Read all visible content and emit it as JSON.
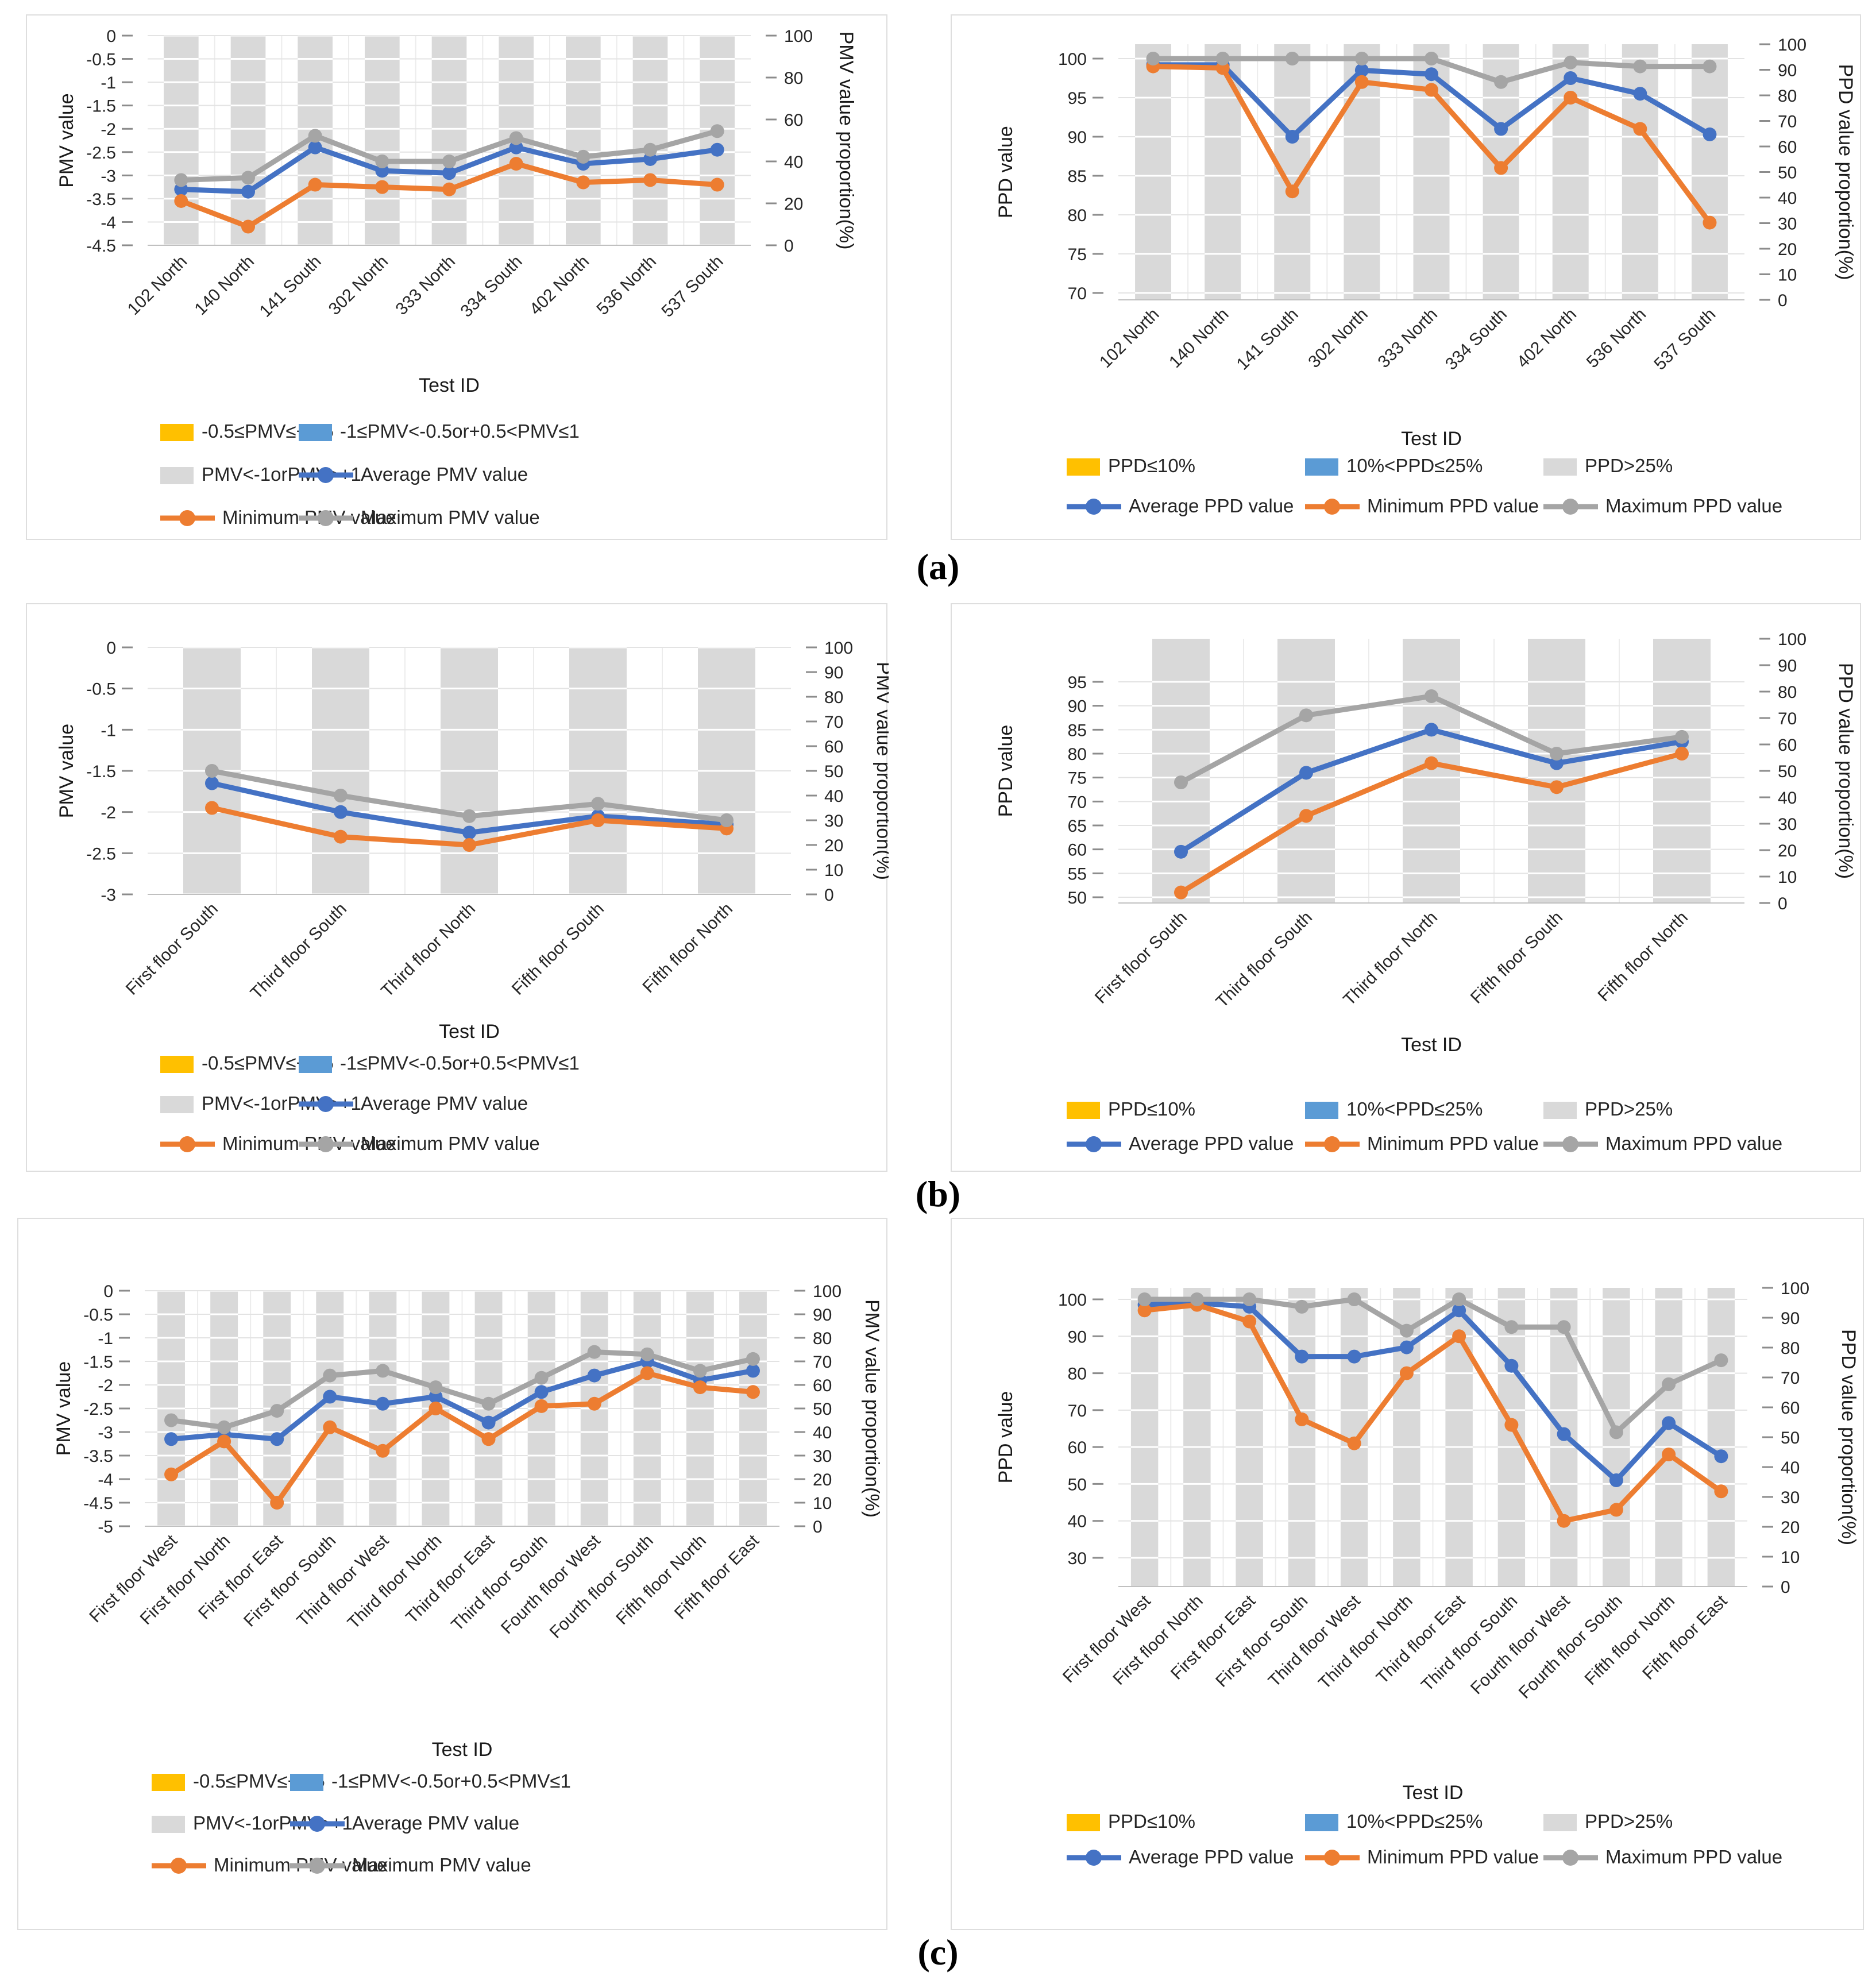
{
  "figure": {
    "row_labels": [
      "(a)",
      "(b)",
      "(c)"
    ]
  },
  "palette": {
    "band_yellow": "#FFC000",
    "band_blue": "#5B9BD5",
    "band_gray": "#D9D9D9",
    "avg_line": "#4472C4",
    "min_line": "#ED7D31",
    "max_line": "#A5A5A5",
    "tick_text": "#262626",
    "title_text": "#1a1a1a",
    "gridline": "#e3e3e3",
    "vgridline": "#ececec",
    "axis_line": "#c0c0c0",
    "tick_mark": "#8c8c8c"
  },
  "chart_data": [
    {
      "id": "pmv-a",
      "type": "line",
      "left_axis": {
        "title": "PMV value",
        "min": -4.5,
        "max": 0,
        "step": 0.5
      },
      "right_axis": {
        "title": "PMV value proportion(%)",
        "min": 0,
        "max": 100,
        "step": 20
      },
      "xlabel": "Test ID",
      "categories": [
        "102 North",
        "140 North",
        "141 South",
        "302 North",
        "333 North",
        "334 South",
        "402 North",
        "536 North",
        "537 South"
      ],
      "bar_series": {
        "name": "PMV<-1orPMV>+1 proportion",
        "values": [
          100,
          100,
          100,
          100,
          100,
          100,
          100,
          100,
          100
        ]
      },
      "series": [
        {
          "name": "Average PMV value",
          "color": "avg_line",
          "values": [
            -3.3,
            -3.35,
            -2.4,
            -2.9,
            -2.95,
            -2.4,
            -2.75,
            -2.65,
            -2.45
          ]
        },
        {
          "name": "Minimum PMV value",
          "color": "min_line",
          "values": [
            -3.55,
            -4.1,
            -3.2,
            -3.25,
            -3.3,
            -2.75,
            -3.15,
            -3.1,
            -3.2
          ]
        },
        {
          "name": "Maximum PMV value",
          "color": "max_line",
          "values": [
            -3.1,
            -3.05,
            -2.15,
            -2.7,
            -2.7,
            -2.2,
            -2.6,
            -2.45,
            -2.05
          ]
        }
      ],
      "legend": [
        {
          "type": "swatch",
          "color": "band_yellow",
          "label": "-0.5≤PMV≤+0.5"
        },
        {
          "type": "swatch",
          "color": "band_blue",
          "label": "-1≤PMV<-0.5or+0.5<PMV≤1"
        },
        {
          "type": "swatch",
          "color": "band_gray",
          "label": "PMV<-1orPMV>+1"
        },
        {
          "type": "line",
          "color": "avg_line",
          "label": "Average PMV value"
        },
        {
          "type": "line",
          "color": "min_line",
          "label": "Minimum PMV value"
        },
        {
          "type": "line",
          "color": "max_line",
          "label": "Maximum PMV value"
        }
      ]
    },
    {
      "id": "ppd-a",
      "type": "line",
      "left_axis": {
        "title": "PPD value",
        "min": 70,
        "max": 100,
        "step": 5
      },
      "right_axis": {
        "title": "PPD value proportion(%)",
        "min": 0,
        "max": 100,
        "step": 10
      },
      "xlabel": "Test ID",
      "categories": [
        "102 North",
        "140 North",
        "141 South",
        "302 North",
        "333 North",
        "334 South",
        "402 North",
        "536 North",
        "537 South"
      ],
      "bar_series": {
        "name": "PPD>25% proportion",
        "values": [
          100,
          100,
          100,
          100,
          100,
          100,
          100,
          100,
          100
        ]
      },
      "series": [
        {
          "name": "Average PPD value",
          "color": "avg_line",
          "values": [
            99.2,
            99.2,
            90,
            98.5,
            98,
            91,
            97.5,
            95.5,
            90.3
          ]
        },
        {
          "name": "Minimum PPD value",
          "color": "min_line",
          "values": [
            99,
            98.8,
            83,
            97,
            96,
            86,
            95,
            91,
            79
          ]
        },
        {
          "name": "Maximum PPD value",
          "color": "max_line",
          "values": [
            100,
            100,
            100,
            100,
            100,
            97,
            99.5,
            99,
            99
          ]
        }
      ],
      "legend": [
        {
          "type": "swatch",
          "color": "band_yellow",
          "label": "PPD≤10%"
        },
        {
          "type": "swatch",
          "color": "band_blue",
          "label": "10%<PPD≤25%"
        },
        {
          "type": "swatch",
          "color": "band_gray",
          "label": "PPD>25%"
        },
        {
          "type": "line",
          "color": "avg_line",
          "label": "Average PPD value"
        },
        {
          "type": "line",
          "color": "min_line",
          "label": "Minimum PPD value"
        },
        {
          "type": "line",
          "color": "max_line",
          "label": "Maximum PPD value"
        }
      ]
    },
    {
      "id": "pmv-b",
      "type": "line",
      "left_axis": {
        "title": "PMV value",
        "min": -3,
        "max": 0,
        "step": 0.5
      },
      "right_axis": {
        "title": "PMV value proportion(%)",
        "min": 0,
        "max": 100,
        "step": 10
      },
      "xlabel": "Test ID",
      "categories": [
        "First floor South",
        "Third floor South",
        "Third floor North",
        "Fifth floor South",
        "Fifth floor North"
      ],
      "bar_series": {
        "name": "PMV<-1orPMV>+1 proportion",
        "values": [
          100,
          100,
          100,
          100,
          100
        ]
      },
      "series": [
        {
          "name": "Average PMV value",
          "color": "avg_line",
          "values": [
            -1.65,
            -2.0,
            -2.25,
            -2.05,
            -2.15
          ]
        },
        {
          "name": "Minimum PMV value",
          "color": "min_line",
          "values": [
            -1.95,
            -2.3,
            -2.4,
            -2.1,
            -2.2
          ]
        },
        {
          "name": "Maximum PMV value",
          "color": "max_line",
          "values": [
            -1.5,
            -1.8,
            -2.05,
            -1.9,
            -2.1
          ]
        }
      ],
      "legend": [
        {
          "type": "swatch",
          "color": "band_yellow",
          "label": "-0.5≤PMV≤+0.5"
        },
        {
          "type": "swatch",
          "color": "band_blue",
          "label": "-1≤PMV<-0.5or+0.5<PMV≤1"
        },
        {
          "type": "swatch",
          "color": "band_gray",
          "label": "PMV<-1orPMV>+1"
        },
        {
          "type": "line",
          "color": "avg_line",
          "label": "Average PMV value"
        },
        {
          "type": "line",
          "color": "min_line",
          "label": "Minimum PMV value"
        },
        {
          "type": "line",
          "color": "max_line",
          "label": "Maximum PMV value"
        }
      ]
    },
    {
      "id": "ppd-b",
      "type": "line",
      "left_axis": {
        "title": "PPD value",
        "min": 50,
        "max": 95,
        "step": 5
      },
      "right_axis": {
        "title": "PPD value proportion(%)",
        "min": 0,
        "max": 100,
        "step": 10
      },
      "xlabel": "Test ID",
      "categories": [
        "First floor South",
        "Third floor South",
        "Third floor North",
        "Fifth floor South",
        "Fifth floor North"
      ],
      "bar_series": {
        "name": "PPD>25% proportion",
        "values": [
          100,
          100,
          100,
          100,
          100
        ]
      },
      "series": [
        {
          "name": "Average PPD value",
          "color": "avg_line",
          "values": [
            59.5,
            76,
            85,
            78,
            82.5
          ]
        },
        {
          "name": "Minimum PPD value",
          "color": "min_line",
          "values": [
            51,
            67,
            78,
            73,
            80
          ]
        },
        {
          "name": "Maximum PPD value",
          "color": "max_line",
          "values": [
            74,
            88,
            92,
            80,
            83.5
          ]
        }
      ],
      "legend": [
        {
          "type": "swatch",
          "color": "band_yellow",
          "label": "PPD≤10%"
        },
        {
          "type": "swatch",
          "color": "band_blue",
          "label": "10%<PPD≤25%"
        },
        {
          "type": "swatch",
          "color": "band_gray",
          "label": "PPD>25%"
        },
        {
          "type": "line",
          "color": "avg_line",
          "label": "Average PPD value"
        },
        {
          "type": "line",
          "color": "min_line",
          "label": "Minimum PPD value"
        },
        {
          "type": "line",
          "color": "max_line",
          "label": "Maximum PPD value"
        }
      ]
    },
    {
      "id": "pmv-c",
      "type": "line",
      "left_axis": {
        "title": "PMV value",
        "min": -5,
        "max": 0,
        "step": 0.5
      },
      "right_axis": {
        "title": "PMV value proportion(%)",
        "min": 0,
        "max": 100,
        "step": 10
      },
      "xlabel": "Test ID",
      "categories": [
        "First floor West",
        "First floor North",
        "First floor East",
        "First floor South",
        "Third floor West",
        "Third floor North",
        "Third floor East",
        "Third floor South",
        "Fourth floor West",
        "Fourth floor South",
        "Fifth floor North",
        "Fifth floor East"
      ],
      "bar_series": {
        "name": "PMV<-1orPMV>+1 proportion",
        "values": [
          100,
          100,
          100,
          100,
          100,
          100,
          100,
          100,
          100,
          100,
          100,
          100
        ]
      },
      "series": [
        {
          "name": "Average PMV value",
          "color": "avg_line",
          "values": [
            -3.15,
            -3.05,
            -3.15,
            -2.25,
            -2.4,
            -2.25,
            -2.8,
            -2.15,
            -1.8,
            -1.5,
            -1.9,
            -1.7
          ]
        },
        {
          "name": "Minimum PMV value",
          "color": "min_line",
          "values": [
            -3.9,
            -3.2,
            -4.5,
            -2.9,
            -3.4,
            -2.5,
            -3.15,
            -2.45,
            -2.4,
            -1.75,
            -2.05,
            -2.15
          ]
        },
        {
          "name": "Maximum PMV value",
          "color": "max_line",
          "values": [
            -2.75,
            -2.9,
            -2.55,
            -1.8,
            -1.7,
            -2.05,
            -2.4,
            -1.85,
            -1.3,
            -1.35,
            -1.7,
            -1.45
          ]
        }
      ],
      "legend": [
        {
          "type": "swatch",
          "color": "band_yellow",
          "label": "-0.5≤PMV≤+0.5"
        },
        {
          "type": "swatch",
          "color": "band_blue",
          "label": "-1≤PMV<-0.5or+0.5<PMV≤1"
        },
        {
          "type": "swatch",
          "color": "band_gray",
          "label": "PMV<-1orPMV>+1"
        },
        {
          "type": "line",
          "color": "avg_line",
          "label": "Average PMV value"
        },
        {
          "type": "line",
          "color": "min_line",
          "label": "Minimum PMV value"
        },
        {
          "type": "line",
          "color": "max_line",
          "label": "Maximum PMV value"
        }
      ]
    },
    {
      "id": "ppd-c",
      "type": "line",
      "left_axis": {
        "title": "PPD value",
        "min": 30,
        "max": 100,
        "step": 10
      },
      "right_axis": {
        "title": "PPD value proportion(%)",
        "min": 0,
        "max": 100,
        "step": 10
      },
      "xlabel": "Test ID",
      "categories": [
        "First floor West",
        "First floor North",
        "First floor East",
        "First floor South",
        "Third floor West",
        "Third floor North",
        "Third floor East",
        "Third floor South",
        "Fourth floor West",
        "Fourth floor South",
        "Fifth floor North",
        "Fifth floor East"
      ],
      "bar_series": {
        "name": "PPD>25% proportion",
        "values": [
          100,
          100,
          100,
          100,
          100,
          100,
          100,
          100,
          100,
          100,
          100,
          100
        ]
      },
      "series": [
        {
          "name": "Average PPD value",
          "color": "avg_line",
          "values": [
            98.5,
            99,
            98,
            84.5,
            84.5,
            87,
            97,
            82,
            63.5,
            51,
            66.5,
            57.5
          ]
        },
        {
          "name": "Minimum PPD value",
          "color": "min_line",
          "values": [
            97,
            98.5,
            94,
            67.5,
            61,
            80,
            90,
            66,
            40,
            43,
            58,
            48
          ]
        },
        {
          "name": "Maximum PPD value",
          "color": "max_line",
          "values": [
            100,
            100,
            100,
            98,
            100,
            91.5,
            100,
            92.5,
            92.5,
            64,
            77,
            83.5
          ]
        }
      ],
      "legend": [
        {
          "type": "swatch",
          "color": "band_yellow",
          "label": "PPD≤10%"
        },
        {
          "type": "swatch",
          "color": "band_blue",
          "label": "10%<PPD≤25%"
        },
        {
          "type": "swatch",
          "color": "band_gray",
          "label": "PPD>25%"
        },
        {
          "type": "line",
          "color": "avg_line",
          "label": "Average PPD value"
        },
        {
          "type": "line",
          "color": "min_line",
          "label": "Minimum PPD value"
        },
        {
          "type": "line",
          "color": "max_line",
          "label": "Maximum PPD value"
        }
      ]
    }
  ]
}
